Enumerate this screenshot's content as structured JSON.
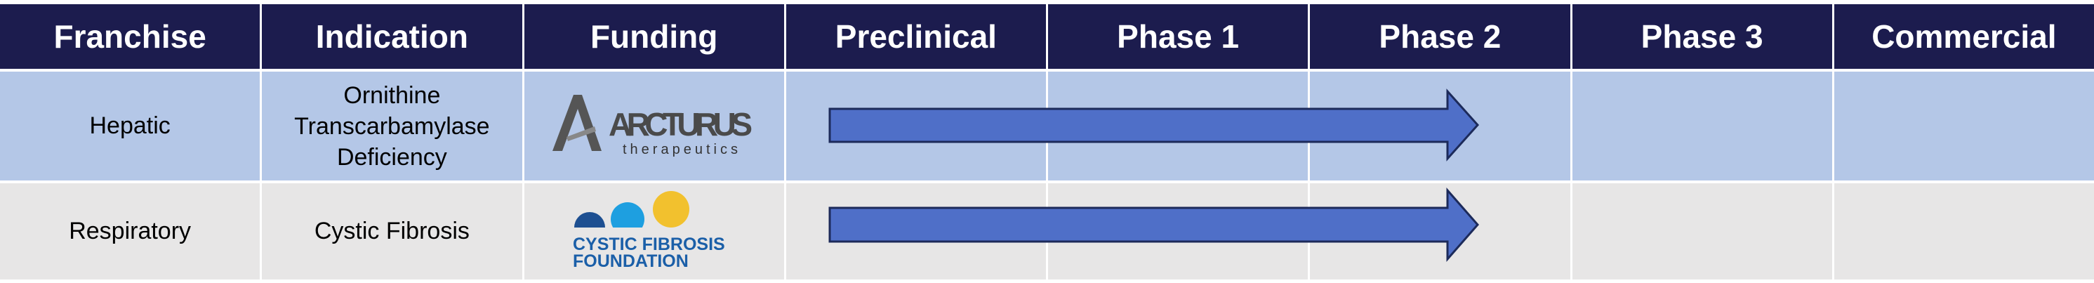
{
  "header": {
    "columns": [
      "Franchise",
      "Indication",
      "Funding",
      "Preclinical",
      "Phase 1",
      "Phase 2",
      "Phase 3",
      "Commercial"
    ]
  },
  "rows": [
    {
      "franchise": "Hepatic",
      "indication": "Ornithine Transcarbamylase Deficiency",
      "funding": {
        "name": "ARCTURUS",
        "tagline": "therapeutics"
      }
    },
    {
      "franchise": "Respiratory",
      "indication": "Cystic Fibrosis",
      "funding": {
        "line1": "CYSTIC FIBROSIS",
        "line2": "FOUNDATION"
      }
    }
  ]
}
